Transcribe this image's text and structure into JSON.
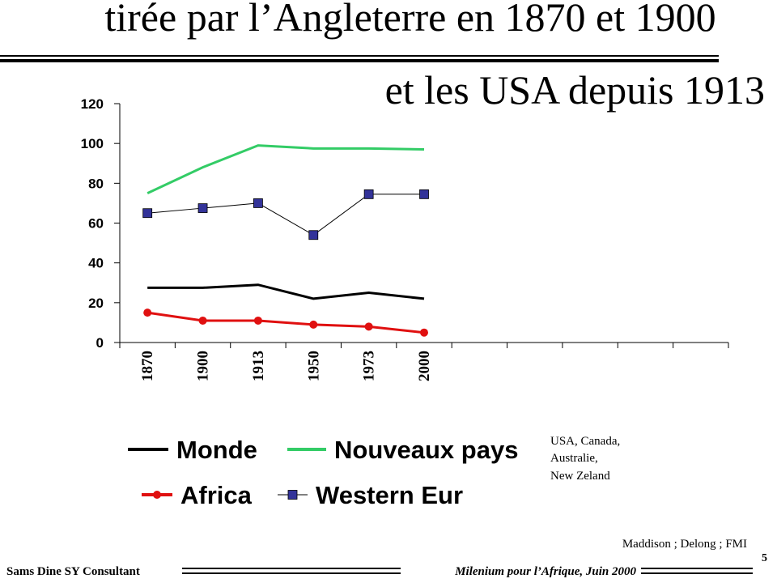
{
  "slide": {
    "title_lines": [
      "tirée par l’Angleterre en 1870 et 1900",
      "et les USA depuis 1913"
    ],
    "note_lines": [
      "USA, Canada,",
      "Australie,",
      "New Zeland"
    ],
    "source": "Maddison ; Delong ; FMI",
    "footer_left": "Sams Dine SY Consultant",
    "footer_right": "Milenium pour l’Afrique, Juin 2000",
    "page_number": "5"
  },
  "chart_data": {
    "type": "line",
    "categories": [
      "1870",
      "1900",
      "1913",
      "1950",
      "1973",
      "2000",
      null,
      null,
      null,
      null,
      null
    ],
    "series": [
      {
        "name": "Monde",
        "color": "#000000",
        "values": [
          27.5,
          27.5,
          29,
          22,
          25,
          22,
          null,
          null,
          null,
          null,
          null
        ]
      },
      {
        "name": "Nouveaux pays",
        "color": "#33cc66",
        "values": [
          75,
          88,
          99,
          97.5,
          97.5,
          97,
          null,
          null,
          null,
          null,
          null
        ]
      },
      {
        "name": "Africa",
        "color": "#e01010",
        "marker": "circle",
        "values": [
          15,
          11,
          11,
          9,
          8,
          5,
          null,
          null,
          null,
          null,
          null
        ]
      },
      {
        "name": "Western Eur",
        "color": "#333399",
        "line_color": "#000000",
        "marker": "square",
        "values": [
          65,
          67.5,
          70,
          54,
          74.5,
          74.5,
          null,
          null,
          null,
          null,
          null
        ]
      }
    ],
    "ylim": [
      0,
      120
    ],
    "yticks": [
      0,
      20,
      40,
      60,
      80,
      100,
      120
    ],
    "grid": false
  }
}
